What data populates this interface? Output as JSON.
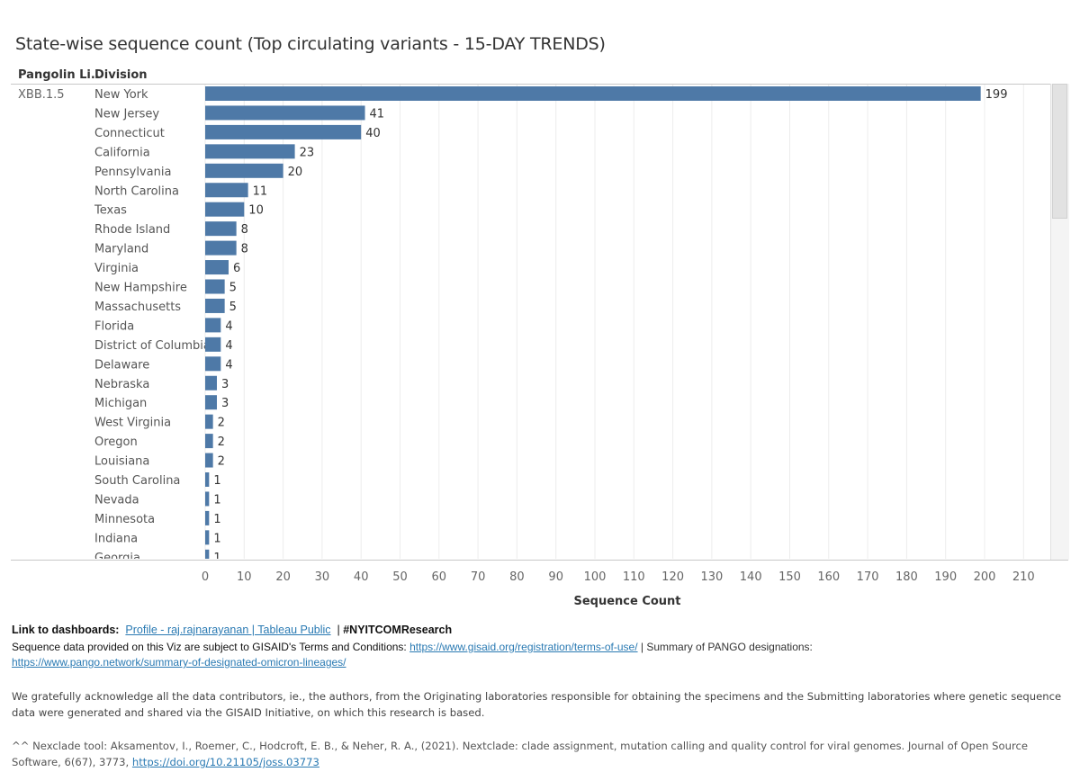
{
  "header": {
    "title": "State-wise sequence count (Top circulating variants - 15-DAY TRENDS)",
    "col_lineage": "Pangolin Li..",
    "col_division": "Division"
  },
  "chart_data": {
    "type": "bar",
    "orientation": "horizontal",
    "group_label": "XBB.1.5",
    "categories": [
      "New York",
      "New Jersey",
      "Connecticut",
      "California",
      "Pennsylvania",
      "North Carolina",
      "Texas",
      "Rhode Island",
      "Maryland",
      "Virginia",
      "New Hampshire",
      "Massachusetts",
      "Florida",
      "District of Columbia",
      "Delaware",
      "Nebraska",
      "Michigan",
      "West Virginia",
      "Oregon",
      "Louisiana",
      "South Carolina",
      "Nevada",
      "Minnesota",
      "Indiana",
      "Georgia"
    ],
    "values": [
      199,
      41,
      40,
      23,
      20,
      11,
      10,
      8,
      8,
      6,
      5,
      5,
      4,
      4,
      4,
      3,
      3,
      2,
      2,
      2,
      1,
      1,
      1,
      1,
      1
    ],
    "xlabel": "Sequence Count",
    "xlim": [
      0,
      216
    ],
    "xticks": [
      0,
      10,
      20,
      30,
      40,
      50,
      60,
      70,
      80,
      90,
      100,
      110,
      120,
      130,
      140,
      150,
      160,
      170,
      180,
      190,
      200,
      210
    ],
    "bar_color": "#4e79a7",
    "grid": true
  },
  "footer": {
    "links_label": "Link to dashboards:",
    "profile_link": "Profile - raj.rajnarayanan | Tableau Public",
    "hashtag": "#NYITCOMResearch",
    "gisaid_text": "Sequence data provided on this Viz are subject to GISAID's Terms and Conditions:",
    "gisaid_link": "https://www.gisaid.org/registration/terms-of-use/",
    "pango_text": "Summary of PANGO designations:",
    "pango_link": "https://www.pango.network/summary-of-designated-omicron-lineages/",
    "acknowledgement": "We gratefully acknowledge all the data contributors, ie., the authors, from the Originating laboratories responsible for obtaining the specimens and the Submitting laboratories where genetic sequence data were generated and shared via the GISAID Initiative, on which this research is based.",
    "nextclade_text": "^^ Nexclade tool: Aksamentov, I., Roemer, C., Hodcroft, E. B., & Neher, R. A., (2021). Nextclade: clade assignment, mutation calling and quality control for viral genomes. Journal of Open Source Software, 6(67), 3773,",
    "nextclade_link": "https://doi.org/10.21105/joss.03773"
  }
}
